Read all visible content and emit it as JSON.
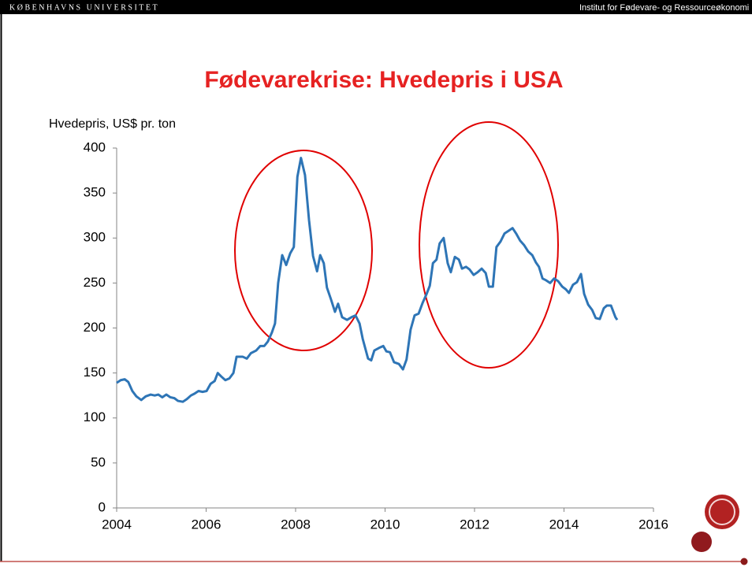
{
  "header": {
    "left": "KØBENHAVNS UNIVERSITET",
    "right": "Institut for Fødevare- og Ressourceøkonomi"
  },
  "chart_data": {
    "type": "line",
    "title": "Fødevarekrise: Hvedepris i USA",
    "y_label": "Hvedepris, US$ pr. ton",
    "color": "#2e75b6",
    "xlim": [
      2004,
      2016
    ],
    "xticks": [
      2004,
      2006,
      2008,
      2010,
      2012,
      2014,
      2016
    ],
    "ylim": [
      0,
      400
    ],
    "yticks": [
      0,
      50,
      100,
      150,
      200,
      250,
      300,
      350,
      400
    ],
    "x": [
      2004.0,
      2004.09,
      2004.18,
      2004.26,
      2004.35,
      2004.44,
      2004.55,
      2004.65,
      2004.76,
      2004.85,
      2004.93,
      2005.02,
      2005.11,
      2005.2,
      2005.29,
      2005.37,
      2005.48,
      2005.57,
      2005.66,
      2005.74,
      2005.83,
      2005.92,
      2006.01,
      2006.1,
      2006.19,
      2006.26,
      2006.34,
      2006.43,
      2006.52,
      2006.61,
      2006.68,
      2006.82,
      2006.91,
      2007.0,
      2007.12,
      2007.21,
      2007.3,
      2007.38,
      2007.47,
      2007.54,
      2007.61,
      2007.7,
      2007.79,
      2007.88,
      2007.96,
      2008.04,
      2008.12,
      2008.21,
      2008.3,
      2008.39,
      2008.48,
      2008.55,
      2008.63,
      2008.7,
      2008.79,
      2008.88,
      2008.95,
      2009.04,
      2009.15,
      2009.25,
      2009.34,
      2009.43,
      2009.5,
      2009.62,
      2009.69,
      2009.76,
      2009.87,
      2009.96,
      2010.03,
      2010.11,
      2010.2,
      2010.31,
      2010.4,
      2010.48,
      2010.57,
      2010.66,
      2010.75,
      2010.84,
      2010.93,
      2011.0,
      2011.07,
      2011.15,
      2011.22,
      2011.31,
      2011.4,
      2011.47,
      2011.56,
      2011.65,
      2011.72,
      2011.81,
      2011.89,
      2011.98,
      2012.07,
      2012.16,
      2012.25,
      2012.32,
      2012.41,
      2012.49,
      2012.58,
      2012.67,
      2012.76,
      2012.85,
      2012.93,
      2013.02,
      2013.11,
      2013.2,
      2013.29,
      2013.37,
      2013.44,
      2013.52,
      2013.6,
      2013.69,
      2013.78,
      2013.87,
      2013.96,
      2014.04,
      2014.11,
      2014.2,
      2014.29,
      2014.38,
      2014.45,
      2014.54,
      2014.63,
      2014.71,
      2014.8,
      2014.89,
      2014.96,
      2015.05,
      2015.15,
      2015.19
    ],
    "values": [
      139,
      142,
      143,
      140,
      130,
      124,
      120,
      124,
      126,
      125,
      126,
      123,
      126,
      123,
      122,
      119,
      118,
      121,
      125,
      127,
      130,
      129,
      130,
      138,
      141,
      150,
      146,
      142,
      144,
      150,
      168,
      168,
      166,
      172,
      175,
      180,
      180,
      185,
      195,
      205,
      250,
      281,
      270,
      283,
      290,
      368,
      389,
      370,
      320,
      280,
      263,
      281,
      272,
      245,
      232,
      218,
      227,
      212,
      209,
      212,
      214,
      205,
      188,
      166,
      164,
      175,
      178,
      180,
      174,
      173,
      162,
      160,
      154,
      165,
      198,
      214,
      216,
      228,
      238,
      247,
      272,
      276,
      294,
      300,
      272,
      262,
      279,
      276,
      266,
      268,
      265,
      259,
      262,
      266,
      261,
      246,
      246,
      290,
      296,
      305,
      308,
      311,
      305,
      297,
      292,
      285,
      281,
      273,
      268,
      255,
      253,
      250,
      255,
      252,
      246,
      243,
      239,
      248,
      251,
      260,
      238,
      226,
      220,
      211,
      210,
      222,
      225,
      225,
      212,
      209
    ]
  }
}
